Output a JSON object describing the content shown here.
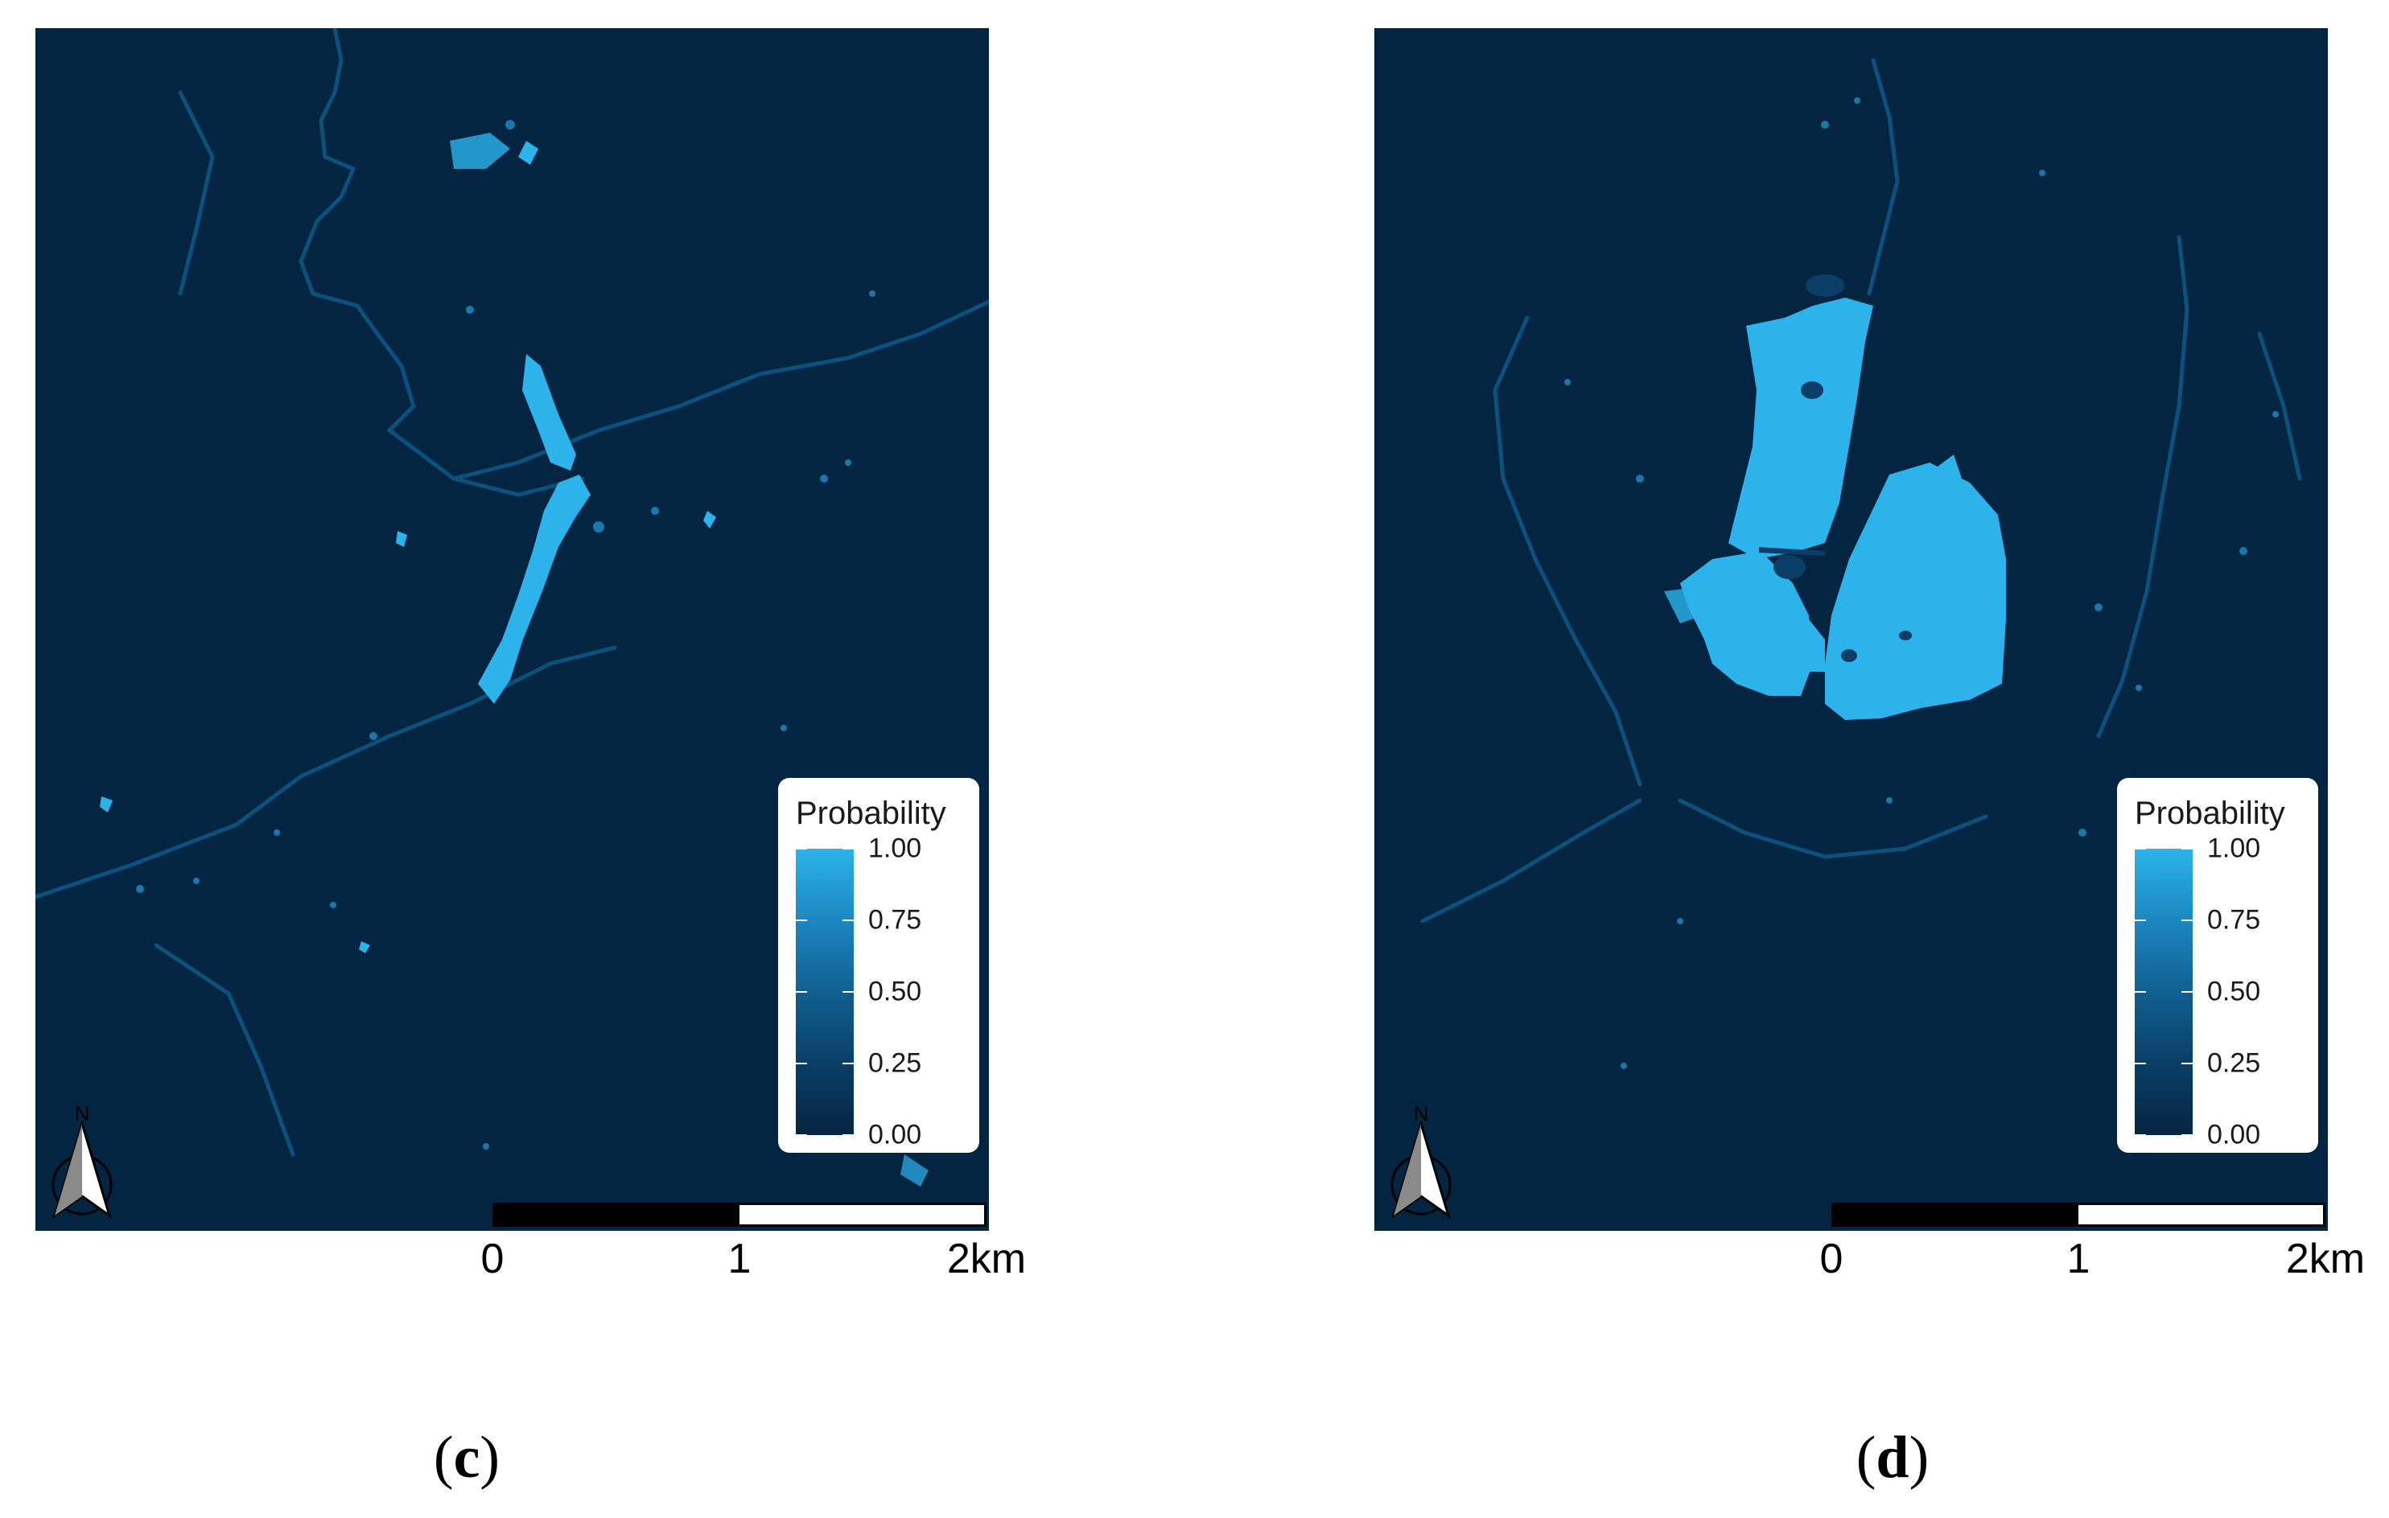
{
  "panels": [
    {
      "id": "c",
      "label": "c",
      "legend": {
        "title": "Probability",
        "ticks": [
          "1.00",
          "0.75",
          "0.50",
          "0.25",
          "0.00"
        ]
      },
      "north_label": "N",
      "scale_labels": [
        "0",
        "1",
        "2km"
      ]
    },
    {
      "id": "d",
      "label": "d",
      "legend": {
        "title": "Probability",
        "ticks": [
          "1.00",
          "0.75",
          "0.50",
          "0.25",
          "0.00"
        ]
      },
      "north_label": "N",
      "scale_labels": [
        "0",
        "1",
        "2km"
      ]
    }
  ],
  "colors": {
    "background_low": "#042541",
    "high_probability": "#2cb3ec",
    "medium_probability": "#0e5c8c"
  },
  "legend_scale": {
    "min": 0,
    "max": 1
  },
  "icons": [
    "north-arrow-icon"
  ]
}
